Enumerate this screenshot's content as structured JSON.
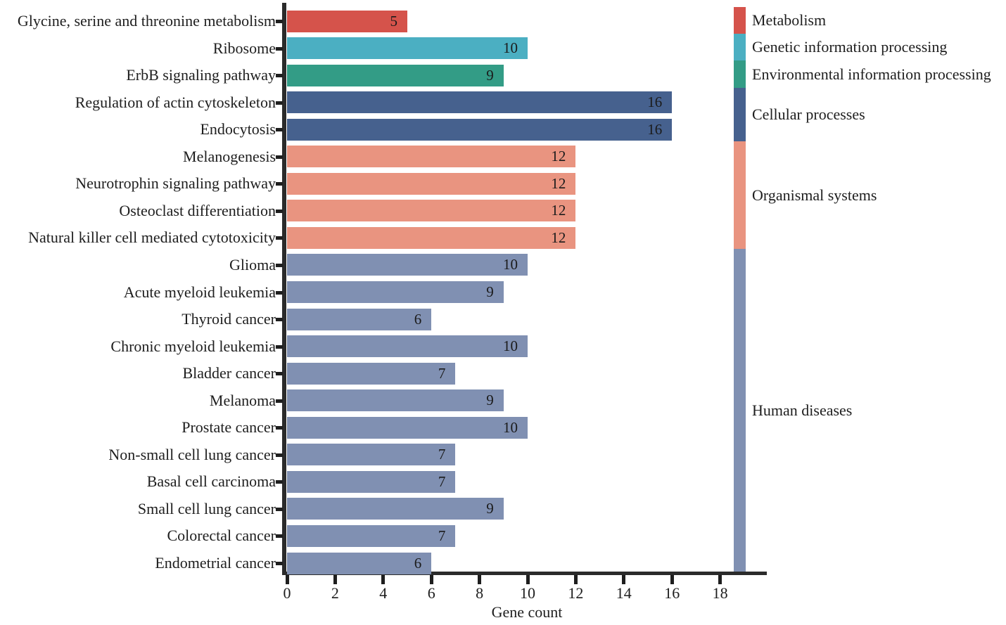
{
  "chart_data": {
    "type": "bar",
    "orientation": "horizontal",
    "xlabel": "Gene count",
    "ylabel": "",
    "title": "",
    "xlim": [
      0,
      20
    ],
    "x_ticks": [
      0,
      2,
      4,
      6,
      8,
      10,
      12,
      14,
      16,
      18
    ],
    "grid": false,
    "legend_position": "right-vertical-stacked-bar",
    "value_labels_inside_bars": true,
    "groups": [
      {
        "name": "Metabolism",
        "color": "#d5534b"
      },
      {
        "name": "Genetic information processing",
        "color": "#4bafc2"
      },
      {
        "name": "Environmental information processing",
        "color": "#339c86"
      },
      {
        "name": "Cellular processes",
        "color": "#46618e"
      },
      {
        "name": "Organismal systems",
        "color": "#e99480"
      },
      {
        "name": "Human diseases",
        "color": "#8090b2"
      }
    ],
    "bars": [
      {
        "label": "Glycine, serine and threonine metabolism",
        "value": 5,
        "group": "Metabolism"
      },
      {
        "label": "Ribosome",
        "value": 10,
        "group": "Genetic information processing"
      },
      {
        "label": "ErbB signaling pathway",
        "value": 9,
        "group": "Environmental information processing"
      },
      {
        "label": "Regulation of actin cytoskeleton",
        "value": 16,
        "group": "Cellular processes"
      },
      {
        "label": "Endocytosis",
        "value": 16,
        "group": "Cellular processes"
      },
      {
        "label": "Melanogenesis",
        "value": 12,
        "group": "Organismal systems"
      },
      {
        "label": "Neurotrophin signaling pathway",
        "value": 12,
        "group": "Organismal systems"
      },
      {
        "label": "Osteoclast differentiation",
        "value": 12,
        "group": "Organismal systems"
      },
      {
        "label": "Natural killer cell mediated cytotoxicity",
        "value": 12,
        "group": "Organismal systems"
      },
      {
        "label": "Glioma",
        "value": 10,
        "group": "Human diseases"
      },
      {
        "label": "Acute myeloid leukemia",
        "value": 9,
        "group": "Human diseases"
      },
      {
        "label": "Thyroid cancer",
        "value": 6,
        "group": "Human diseases"
      },
      {
        "label": "Chronic myeloid leukemia",
        "value": 10,
        "group": "Human diseases"
      },
      {
        "label": "Bladder cancer",
        "value": 7,
        "group": "Human diseases"
      },
      {
        "label": "Melanoma",
        "value": 9,
        "group": "Human diseases"
      },
      {
        "label": "Prostate cancer",
        "value": 10,
        "group": "Human diseases"
      },
      {
        "label": "Non-small cell lung cancer",
        "value": 7,
        "group": "Human diseases"
      },
      {
        "label": "Basal cell carcinoma",
        "value": 7,
        "group": "Human diseases"
      },
      {
        "label": "Small cell lung cancer",
        "value": 9,
        "group": "Human diseases"
      },
      {
        "label": "Colorectal cancer",
        "value": 7,
        "group": "Human diseases"
      },
      {
        "label": "Endometrial cancer",
        "value": 6,
        "group": "Human diseases"
      }
    ],
    "colors": {
      "axis": "#2b2b2b",
      "text": "#1e1e1e",
      "background": "#ffffff"
    }
  }
}
